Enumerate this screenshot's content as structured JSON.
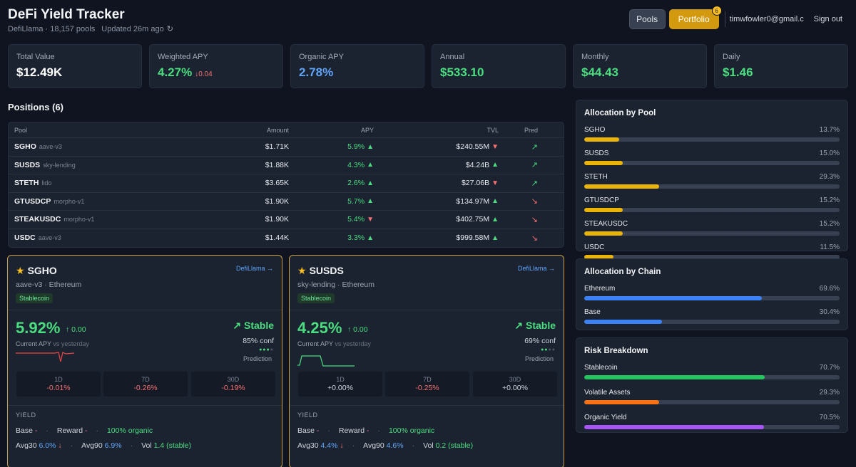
{
  "header": {
    "title": "DeFi Yield Tracker",
    "source": "DefiLlama",
    "pool_count": "18,157 pools",
    "updated": "Updated 26m ago",
    "pools_btn": "Pools",
    "portfolio_btn": "Portfolio",
    "portfolio_badge": "6",
    "email": "timwfowler0@gmail.com",
    "signout": "Sign out"
  },
  "stats": [
    {
      "label": "Total Value",
      "value": "$12.49K",
      "color": "#ffffff"
    },
    {
      "label": "Weighted APY",
      "value": "4.27%",
      "delta": "↓0.04",
      "color": "#4ade80"
    },
    {
      "label": "Organic APY",
      "value": "2.78%",
      "color": "#60a5fa"
    },
    {
      "label": "Annual",
      "value": "$533.10",
      "color": "#4ade80"
    },
    {
      "label": "Monthly",
      "value": "$44.43",
      "color": "#4ade80"
    },
    {
      "label": "Daily",
      "value": "$1.46",
      "color": "#4ade80"
    }
  ],
  "positions": {
    "title": "Positions (6)",
    "columns": {
      "pool": "Pool",
      "amount": "Amount",
      "apy": "APY",
      "tvl": "TVL",
      "pred": "Pred"
    },
    "rows": [
      {
        "symbol": "SGHO",
        "project": "aave-v3",
        "amount": "$1.71K",
        "apy": "5.9%",
        "apy_dir": "up",
        "tvl": "$240.55M",
        "tvl_dir": "down",
        "pred": "up"
      },
      {
        "symbol": "SUSDS",
        "project": "sky-lending",
        "amount": "$1.88K",
        "apy": "4.3%",
        "apy_dir": "up",
        "tvl": "$4.24B",
        "tvl_dir": "up",
        "pred": "up"
      },
      {
        "symbol": "STETH",
        "project": "lido",
        "amount": "$3.65K",
        "apy": "2.6%",
        "apy_dir": "up",
        "tvl": "$27.06B",
        "tvl_dir": "down",
        "pred": "up"
      },
      {
        "symbol": "GTUSDCP",
        "project": "morpho-v1",
        "amount": "$1.90K",
        "apy": "5.7%",
        "apy_dir": "up",
        "tvl": "$134.97M",
        "tvl_dir": "up",
        "pred": "down"
      },
      {
        "symbol": "STEAKUSDC",
        "project": "morpho-v1",
        "amount": "$1.90K",
        "apy": "5.4%",
        "apy_dir": "down",
        "tvl": "$402.75M",
        "tvl_dir": "up",
        "pred": "down"
      },
      {
        "symbol": "USDC",
        "project": "aave-v3",
        "amount": "$1.44K",
        "apy": "3.3%",
        "apy_dir": "up",
        "tvl": "$999.58M",
        "tvl_dir": "up",
        "pred": "down"
      }
    ]
  },
  "cards": [
    {
      "symbol": "SGHO",
      "link": "DefiLlama →",
      "sub": "aave-v3 · Ethereum",
      "tag": "Stablecoin",
      "apy": "5.92%",
      "change": "↑ 0.00",
      "caption": "Current APY",
      "caption_sub": "vs yesterday",
      "trend": "↗ Stable",
      "conf": "85% conf",
      "prediction": "Prediction",
      "periods": [
        {
          "label": "1D",
          "value": "-0.01%",
          "neg": true
        },
        {
          "label": "7D",
          "value": "-0.26%",
          "neg": true
        },
        {
          "label": "30D",
          "value": "-0.19%",
          "neg": true
        }
      ],
      "yield_label": "YIELD",
      "base_label": "Base",
      "base_val": "-",
      "reward_label": "Reward",
      "reward_val": "-",
      "organic": "100% organic",
      "avg30_label": "Avg30",
      "avg30": "6.0%",
      "avg30_dir": "↓",
      "avg90_label": "Avg90",
      "avg90": "6.9%",
      "vol_label": "Vol",
      "vol": "1.4 (stable)"
    },
    {
      "symbol": "SUSDS",
      "link": "DefiLlama →",
      "sub": "sky-lending · Ethereum",
      "tag": "Stablecoin",
      "apy": "4.25%",
      "change": "↑ 0.00",
      "caption": "Current APY",
      "caption_sub": "vs yesterday",
      "trend": "↗ Stable",
      "conf": "69% conf",
      "prediction": "Prediction",
      "periods": [
        {
          "label": "1D",
          "value": "+0.00%",
          "neg": false
        },
        {
          "label": "7D",
          "value": "-0.25%",
          "neg": true
        },
        {
          "label": "30D",
          "value": "+0.00%",
          "neg": false
        }
      ],
      "yield_label": "YIELD",
      "base_label": "Base",
      "base_val": "-",
      "reward_label": "Reward",
      "reward_val": "-",
      "organic": "100% organic",
      "avg30_label": "Avg30",
      "avg30": "4.4%",
      "avg30_dir": "↓",
      "avg90_label": "Avg90",
      "avg90": "4.6%",
      "vol_label": "Vol",
      "vol": "0.2 (stable)"
    }
  ],
  "allocation_pool": {
    "title": "Allocation by Pool",
    "items": [
      {
        "label": "SGHO",
        "pct": "13.7%",
        "value": 13.7,
        "color": "#eab308"
      },
      {
        "label": "SUSDS",
        "pct": "15.0%",
        "value": 15.0,
        "color": "#eab308"
      },
      {
        "label": "STETH",
        "pct": "29.3%",
        "value": 29.3,
        "color": "#eab308"
      },
      {
        "label": "GTUSDCP",
        "pct": "15.2%",
        "value": 15.2,
        "color": "#eab308"
      },
      {
        "label": "STEAKUSDC",
        "pct": "15.2%",
        "value": 15.2,
        "color": "#eab308"
      },
      {
        "label": "USDC",
        "pct": "11.5%",
        "value": 11.5,
        "color": "#eab308"
      }
    ]
  },
  "allocation_chain": {
    "title": "Allocation by Chain",
    "items": [
      {
        "label": "Ethereum",
        "pct": "69.6%",
        "value": 69.6,
        "color": "#3b82f6"
      },
      {
        "label": "Base",
        "pct": "30.4%",
        "value": 30.4,
        "color": "#3b82f6"
      }
    ]
  },
  "risk": {
    "title": "Risk Breakdown",
    "items": [
      {
        "label": "Stablecoin",
        "pct": "70.7%",
        "value": 70.7,
        "color": "#22c55e"
      },
      {
        "label": "Volatile Assets",
        "pct": "29.3%",
        "value": 29.3,
        "color": "#f97316"
      },
      {
        "label": "Organic Yield",
        "pct": "70.5%",
        "value": 70.5,
        "color": "#a855f7"
      }
    ]
  }
}
